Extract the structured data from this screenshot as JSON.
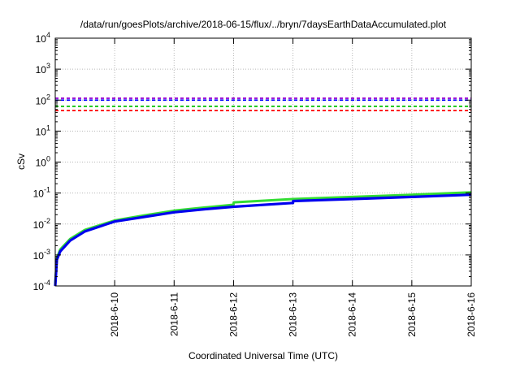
{
  "chart_data": {
    "type": "line",
    "title": "/data/run/goesPlots/archive/2018-06-15/flux/../bryn/7daysEarthDataAccumulated.plot",
    "xlabel": "Coordinated Universal Time (UTC)",
    "ylabel": "cSv",
    "x_ticks": [
      "2018-6-10",
      "2018-6-11",
      "2018-6-12",
      "2018-6-13",
      "2018-6-14",
      "2018-6-15",
      "2018-6-16"
    ],
    "xlim": [
      "2018-06-09",
      "2018-06-16"
    ],
    "y_scale": "log",
    "ylim": [
      0.0001,
      10000
    ],
    "y_ticks": [
      {
        "value": 0.0001,
        "base": "10",
        "exp": "-4"
      },
      {
        "value": 0.001,
        "base": "10",
        "exp": "-3"
      },
      {
        "value": 0.01,
        "base": "10",
        "exp": "-2"
      },
      {
        "value": 0.1,
        "base": "10",
        "exp": "-1"
      },
      {
        "value": 1,
        "base": "10",
        "exp": "0"
      },
      {
        "value": 10,
        "base": "10",
        "exp": "1"
      },
      {
        "value": 100,
        "base": "10",
        "exp": "2"
      },
      {
        "value": 1000,
        "base": "10",
        "exp": "3"
      },
      {
        "value": 10000,
        "base": "10",
        "exp": "4"
      }
    ],
    "grid": true,
    "thresholds": [
      {
        "value": 115,
        "color": "#9400d3",
        "style": "dashed"
      },
      {
        "value": 100,
        "color": "#0000ff",
        "style": "dashed"
      },
      {
        "value": 63,
        "color": "#00c000",
        "style": "dashed"
      },
      {
        "value": 46,
        "color": "#ff0000",
        "style": "dashed"
      }
    ],
    "series": [
      {
        "color": "#33dd33",
        "points": [
          [
            "2018-06-09T00:00",
            0.00012
          ],
          [
            "2018-06-09T00:40",
            0.0008
          ],
          [
            "2018-06-09T02:00",
            0.0015
          ],
          [
            "2018-06-09T06:00",
            0.0033
          ],
          [
            "2018-06-09T12:00",
            0.0065
          ],
          [
            "2018-06-10T00:00",
            0.013
          ],
          [
            "2018-06-10T12:00",
            0.019
          ],
          [
            "2018-06-11T00:00",
            0.027
          ],
          [
            "2018-06-11T12:00",
            0.034
          ],
          [
            "2018-06-12T00:00",
            0.042
          ],
          [
            "2018-06-12T00:05",
            0.05
          ],
          [
            "2018-06-13T00:00",
            0.064
          ],
          [
            "2018-06-14T00:00",
            0.075
          ],
          [
            "2018-06-15T00:00",
            0.088
          ],
          [
            "2018-06-16T00:00",
            0.105
          ]
        ]
      },
      {
        "color": "#0000ee",
        "points": [
          [
            "2018-06-09T00:00",
            0.0001
          ],
          [
            "2018-06-09T00:40",
            0.0007
          ],
          [
            "2018-06-09T02:00",
            0.0013
          ],
          [
            "2018-06-09T06:00",
            0.0029
          ],
          [
            "2018-06-09T12:00",
            0.0058
          ],
          [
            "2018-06-10T00:00",
            0.012
          ],
          [
            "2018-06-10T12:00",
            0.017
          ],
          [
            "2018-06-11T00:00",
            0.024
          ],
          [
            "2018-06-11T12:00",
            0.03
          ],
          [
            "2018-06-12T00:00",
            0.036
          ],
          [
            "2018-06-13T00:00",
            0.048
          ],
          [
            "2018-06-13T00:05",
            0.055
          ],
          [
            "2018-06-14T00:00",
            0.064
          ],
          [
            "2018-06-15T00:00",
            0.075
          ],
          [
            "2018-06-16T00:00",
            0.088
          ]
        ]
      }
    ]
  }
}
